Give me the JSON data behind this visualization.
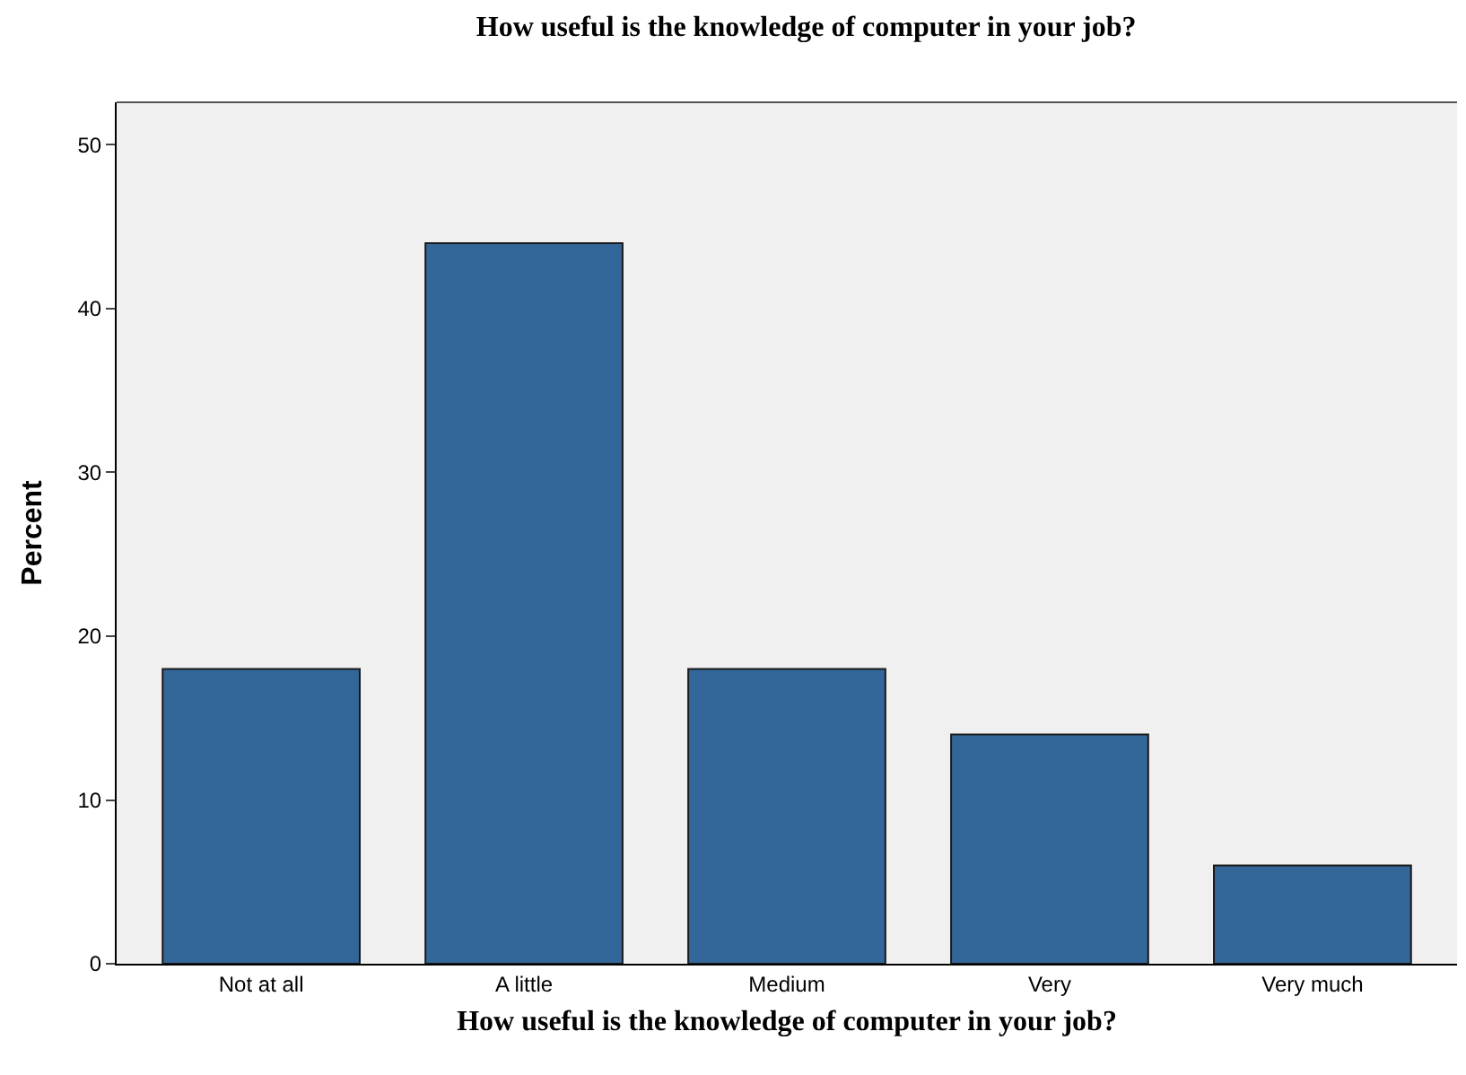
{
  "chart_data": {
    "type": "bar",
    "title": "How useful is the knowledge of computer in your job?",
    "xlabel": "How useful is the knowledge of computer in your job?",
    "ylabel": "Percent",
    "categories": [
      "Not at all",
      "A little",
      "Medium",
      "Very",
      "Very much"
    ],
    "values": [
      18,
      44,
      18,
      14,
      6
    ],
    "color": "#336699",
    "ylim": [
      0,
      52.6
    ],
    "yticks": [
      0,
      10,
      20,
      30,
      40,
      50
    ]
  }
}
